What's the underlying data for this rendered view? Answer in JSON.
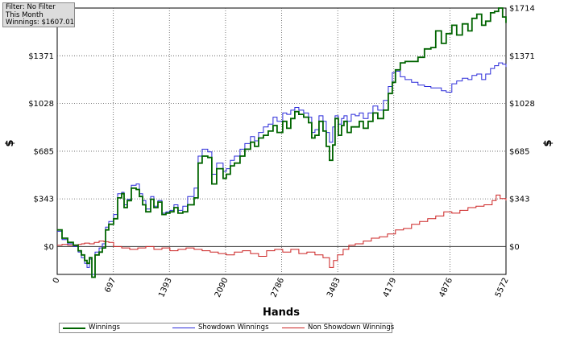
{
  "info_box": {
    "filter": "Filter: No Filter",
    "period": "This Month",
    "winnings": "Winnings: $1607.01"
  },
  "chart_data": {
    "type": "line",
    "xlabel": "Hands",
    "ylabel": "$",
    "xlim": [
      0,
      5572
    ],
    "ylim": [
      -200,
      1714
    ],
    "x_ticks": [
      0,
      697,
      1393,
      2090,
      2786,
      3483,
      4179,
      4876,
      5572
    ],
    "y_ticks": [
      {
        "value": 0,
        "label": "$0"
      },
      {
        "value": 343,
        "label": "$343"
      },
      {
        "value": 685,
        "label": "$685"
      },
      {
        "value": 1028,
        "label": "$1028"
      },
      {
        "value": 1371,
        "label": "$1371"
      },
      {
        "value": 1714,
        "label": "$1714"
      }
    ],
    "grid": true,
    "legend_position": "bottom",
    "series": [
      {
        "name": "Winnings",
        "color": "#006400",
        "x": [
          0,
          60,
          130,
          200,
          260,
          300,
          340,
          370,
          400,
          430,
          470,
          520,
          560,
          600,
          640,
          700,
          750,
          800,
          830,
          870,
          920,
          980,
          1020,
          1060,
          1100,
          1160,
          1200,
          1250,
          1300,
          1350,
          1400,
          1450,
          1500,
          1560,
          1620,
          1700,
          1750,
          1800,
          1870,
          1920,
          1980,
          2060,
          2100,
          2150,
          2200,
          2270,
          2330,
          2400,
          2450,
          2500,
          2560,
          2620,
          2680,
          2730,
          2800,
          2850,
          2900,
          2950,
          3000,
          3060,
          3120,
          3160,
          3200,
          3250,
          3300,
          3340,
          3380,
          3420,
          3450,
          3490,
          3530,
          3560,
          3600,
          3650,
          3700,
          3750,
          3800,
          3860,
          3920,
          3980,
          4050,
          4110,
          4160,
          4200,
          4260,
          4320,
          4400,
          4480,
          4560,
          4640,
          4700,
          4770,
          4830,
          4900,
          4960,
          5030,
          5100,
          5150,
          5210,
          5270,
          5320,
          5380,
          5430,
          5480,
          5530,
          5572
        ],
        "y": [
          120,
          60,
          30,
          10,
          -30,
          -60,
          -100,
          -120,
          -80,
          -220,
          -60,
          -40,
          -10,
          120,
          160,
          200,
          350,
          380,
          280,
          330,
          420,
          410,
          360,
          300,
          250,
          340,
          280,
          320,
          230,
          240,
          250,
          280,
          240,
          250,
          300,
          350,
          600,
          650,
          640,
          450,
          560,
          490,
          520,
          580,
          600,
          650,
          700,
          750,
          720,
          780,
          800,
          830,
          870,
          820,
          900,
          850,
          920,
          970,
          950,
          930,
          890,
          780,
          800,
          900,
          830,
          720,
          620,
          730,
          920,
          800,
          870,
          900,
          820,
          860,
          860,
          900,
          850,
          900,
          960,
          920,
          980,
          1100,
          1180,
          1270,
          1320,
          1330,
          1330,
          1360,
          1420,
          1430,
          1550,
          1460,
          1530,
          1590,
          1520,
          1600,
          1550,
          1640,
          1670,
          1590,
          1620,
          1680,
          1690,
          1714,
          1650,
          1607
        ]
      },
      {
        "name": "Showdown Winnings",
        "color": "#2b2bd9",
        "x": [
          0,
          60,
          130,
          200,
          260,
          300,
          340,
          370,
          400,
          430,
          470,
          520,
          560,
          600,
          640,
          700,
          750,
          800,
          830,
          870,
          920,
          980,
          1020,
          1060,
          1100,
          1160,
          1200,
          1250,
          1300,
          1350,
          1400,
          1450,
          1500,
          1560,
          1620,
          1700,
          1750,
          1800,
          1870,
          1920,
          1980,
          2060,
          2100,
          2150,
          2200,
          2270,
          2330,
          2400,
          2450,
          2500,
          2560,
          2620,
          2680,
          2730,
          2800,
          2850,
          2900,
          2950,
          3000,
          3060,
          3120,
          3160,
          3200,
          3250,
          3300,
          3340,
          3380,
          3420,
          3450,
          3490,
          3530,
          3560,
          3600,
          3650,
          3700,
          3750,
          3800,
          3860,
          3920,
          3980,
          4050,
          4110,
          4160,
          4200,
          4260,
          4320,
          4400,
          4480,
          4560,
          4640,
          4700,
          4770,
          4830,
          4900,
          4960,
          5030,
          5100,
          5150,
          5210,
          5270,
          5320,
          5380,
          5430,
          5480,
          5530,
          5572
        ],
        "y": [
          110,
          50,
          20,
          0,
          -40,
          -80,
          -120,
          -150,
          -90,
          -200,
          -40,
          -10,
          20,
          140,
          180,
          230,
          380,
          390,
          300,
          340,
          440,
          450,
          380,
          330,
          270,
          360,
          290,
          330,
          240,
          250,
          260,
          300,
          260,
          290,
          360,
          420,
          650,
          700,
          680,
          520,
          600,
          540,
          560,
          620,
          650,
          700,
          740,
          790,
          760,
          820,
          860,
          880,
          930,
          900,
          960,
          950,
          980,
          1000,
          980,
          960,
          930,
          820,
          840,
          940,
          900,
          820,
          750,
          860,
          940,
          880,
          920,
          940,
          900,
          950,
          940,
          960,
          920,
          960,
          1010,
          980,
          1050,
          1150,
          1250,
          1260,
          1220,
          1200,
          1180,
          1160,
          1150,
          1140,
          1140,
          1120,
          1110,
          1170,
          1190,
          1210,
          1200,
          1230,
          1240,
          1200,
          1240,
          1280,
          1300,
          1320,
          1310,
          1290
        ]
      },
      {
        "name": "Non Showdown Winnings",
        "color": "#cc2222",
        "x": [
          0,
          60,
          130,
          200,
          260,
          300,
          340,
          400,
          460,
          520,
          580,
          640,
          700,
          800,
          900,
          1000,
          1100,
          1200,
          1300,
          1400,
          1500,
          1600,
          1700,
          1800,
          1900,
          2000,
          2100,
          2200,
          2300,
          2400,
          2500,
          2600,
          2700,
          2800,
          2900,
          3000,
          3100,
          3200,
          3300,
          3380,
          3430,
          3480,
          3550,
          3620,
          3700,
          3800,
          3900,
          4000,
          4100,
          4200,
          4300,
          4400,
          4500,
          4600,
          4700,
          4800,
          4900,
          5000,
          5100,
          5200,
          5300,
          5400,
          5450,
          5500,
          5572
        ],
        "y": [
          10,
          15,
          10,
          5,
          15,
          20,
          25,
          20,
          30,
          40,
          35,
          30,
          0,
          -10,
          -20,
          -10,
          0,
          -20,
          -10,
          -30,
          -20,
          -10,
          -20,
          -30,
          -40,
          -50,
          -60,
          -40,
          -30,
          -50,
          -70,
          -30,
          -20,
          -40,
          -20,
          -50,
          -40,
          -60,
          -80,
          -150,
          -100,
          -60,
          -20,
          10,
          20,
          40,
          60,
          70,
          90,
          120,
          130,
          160,
          180,
          200,
          220,
          250,
          240,
          260,
          280,
          290,
          300,
          330,
          370,
          345,
          330
        ]
      }
    ]
  }
}
